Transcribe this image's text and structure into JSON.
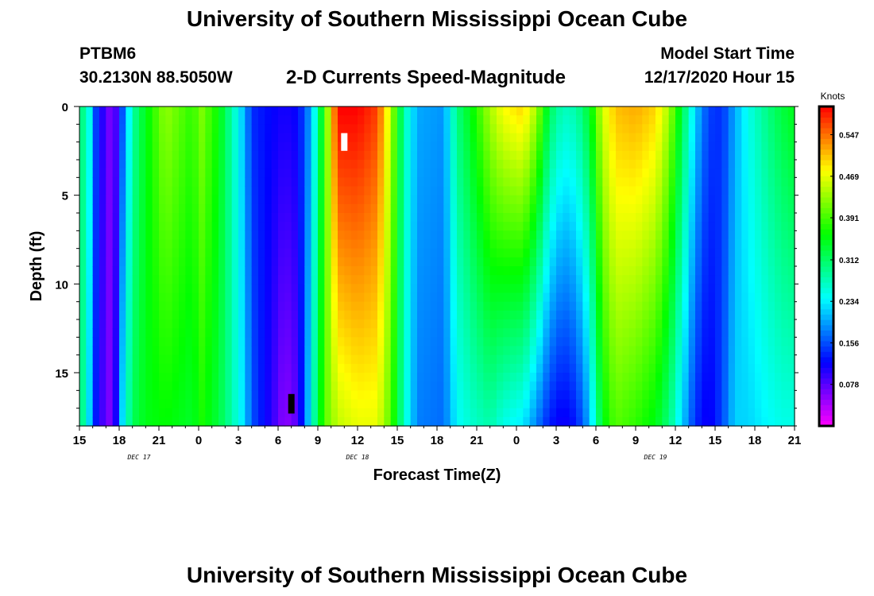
{
  "header": {
    "title": "University of Southern Mississippi Ocean Cube",
    "station_id": "PTBM6",
    "coordinates": "30.2130N 88.5050W",
    "chart_title": "2-D Currents Speed-Magnitude",
    "model_start_label": "Model Start Time",
    "model_start_value": "12/17/2020 Hour 15"
  },
  "footer": {
    "title": "University of Southern Mississippi Ocean Cube"
  },
  "chart_data": {
    "type": "heatmap",
    "title": "2-D Currents Speed-Magnitude",
    "xlabel": "Forecast Time(Z)",
    "ylabel": "Depth (ft)",
    "x_range_hours": [
      0,
      54
    ],
    "y_range_ft": [
      0,
      18
    ],
    "x_tick_hours": [
      0,
      3,
      6,
      9,
      12,
      15,
      18,
      21,
      24,
      27,
      30,
      33,
      36,
      39,
      42,
      45,
      48,
      51,
      54
    ],
    "x_tick_labels": [
      "15",
      "18",
      "21",
      "0",
      "3",
      "6",
      "9",
      "12",
      "15",
      "18",
      "21",
      "0",
      "3",
      "6",
      "9",
      "12",
      "15",
      "18",
      "21"
    ],
    "y_ticks": [
      0,
      5,
      10,
      15
    ],
    "y_tick_labels": [
      "0",
      "5",
      "10",
      "15"
    ],
    "date_labels": [
      {
        "text": "DEC 17",
        "hour": 4.5
      },
      {
        "text": "DEC 18",
        "hour": 21
      },
      {
        "text": "DEC 19",
        "hour": 43.5
      }
    ],
    "colorbar": {
      "title": "Knots",
      "range": [
        0,
        0.6
      ],
      "tick_values": [
        0.078,
        0.156,
        0.234,
        0.312,
        0.391,
        0.469,
        0.547
      ],
      "tick_labels": [
        "0.078",
        "0.156",
        "0.234",
        "0.312",
        "0.391",
        "0.469",
        "0.547"
      ]
    },
    "grid": {
      "time_step_hours": 0.5,
      "depth_step_ft": 0.5
    },
    "speed_model": {
      "description": "approximate speed (knots) estimated from colors at selected times; surface and bottom values",
      "keyframes": [
        {
          "hour": 0.0,
          "surface": 0.27,
          "bottom": 0.3
        },
        {
          "hour": 0.5,
          "surface": 0.32,
          "bottom": 0.28
        },
        {
          "hour": 1.0,
          "surface": 0.18,
          "bottom": 0.16
        },
        {
          "hour": 1.5,
          "surface": 0.12,
          "bottom": 0.1
        },
        {
          "hour": 2.5,
          "surface": 0.05,
          "bottom": 0.05
        },
        {
          "hour": 3.2,
          "surface": 0.15,
          "bottom": 0.22
        },
        {
          "hour": 4.0,
          "surface": 0.28,
          "bottom": 0.32
        },
        {
          "hour": 5.0,
          "surface": 0.35,
          "bottom": 0.35
        },
        {
          "hour": 6.5,
          "surface": 0.43,
          "bottom": 0.36
        },
        {
          "hour": 8.5,
          "surface": 0.38,
          "bottom": 0.34
        },
        {
          "hour": 9.2,
          "surface": 0.42,
          "bottom": 0.37
        },
        {
          "hour": 10.5,
          "surface": 0.36,
          "bottom": 0.33
        },
        {
          "hour": 11.5,
          "surface": 0.28,
          "bottom": 0.28
        },
        {
          "hour": 12.5,
          "surface": 0.2,
          "bottom": 0.22
        },
        {
          "hour": 13.0,
          "surface": 0.14,
          "bottom": 0.16
        },
        {
          "hour": 14.5,
          "surface": 0.12,
          "bottom": 0.1
        },
        {
          "hour": 15.5,
          "surface": 0.11,
          "bottom": 0.05
        },
        {
          "hour": 16.5,
          "surface": 0.12,
          "bottom": 0.08
        },
        {
          "hour": 17.5,
          "surface": 0.2,
          "bottom": 0.25
        },
        {
          "hour": 18.5,
          "surface": 0.38,
          "bottom": 0.4
        },
        {
          "hour": 19.5,
          "surface": 0.6,
          "bottom": 0.45
        },
        {
          "hour": 21.0,
          "surface": 0.6,
          "bottom": 0.47
        },
        {
          "hour": 22.5,
          "surface": 0.57,
          "bottom": 0.47
        },
        {
          "hour": 23.5,
          "surface": 0.45,
          "bottom": 0.4
        },
        {
          "hour": 24.5,
          "surface": 0.28,
          "bottom": 0.27
        },
        {
          "hour": 25.5,
          "surface": 0.2,
          "bottom": 0.18
        },
        {
          "hour": 27.5,
          "surface": 0.19,
          "bottom": 0.17
        },
        {
          "hour": 28.5,
          "surface": 0.3,
          "bottom": 0.24
        },
        {
          "hour": 29.5,
          "surface": 0.35,
          "bottom": 0.26
        },
        {
          "hour": 31.0,
          "surface": 0.44,
          "bottom": 0.28
        },
        {
          "hour": 32.0,
          "surface": 0.48,
          "bottom": 0.25
        },
        {
          "hour": 33.5,
          "surface": 0.5,
          "bottom": 0.23
        },
        {
          "hour": 34.5,
          "surface": 0.44,
          "bottom": 0.18
        },
        {
          "hour": 35.5,
          "surface": 0.32,
          "bottom": 0.13
        },
        {
          "hour": 36.5,
          "surface": 0.27,
          "bottom": 0.11
        },
        {
          "hour": 37.5,
          "surface": 0.28,
          "bottom": 0.13
        },
        {
          "hour": 38.5,
          "surface": 0.34,
          "bottom": 0.2
        },
        {
          "hour": 39.5,
          "surface": 0.46,
          "bottom": 0.35
        },
        {
          "hour": 40.5,
          "surface": 0.51,
          "bottom": 0.4
        },
        {
          "hour": 42.0,
          "surface": 0.52,
          "bottom": 0.38
        },
        {
          "hour": 43.5,
          "surface": 0.5,
          "bottom": 0.35
        },
        {
          "hour": 44.5,
          "surface": 0.44,
          "bottom": 0.3
        },
        {
          "hour": 45.5,
          "surface": 0.33,
          "bottom": 0.22
        },
        {
          "hour": 46.5,
          "surface": 0.22,
          "bottom": 0.14
        },
        {
          "hour": 47.5,
          "surface": 0.15,
          "bottom": 0.11
        },
        {
          "hour": 48.5,
          "surface": 0.14,
          "bottom": 0.15
        },
        {
          "hour": 49.5,
          "surface": 0.2,
          "bottom": 0.22
        },
        {
          "hour": 50.5,
          "surface": 0.25,
          "bottom": 0.22
        },
        {
          "hour": 52.0,
          "surface": 0.3,
          "bottom": 0.24
        },
        {
          "hour": 53.0,
          "surface": 0.33,
          "bottom": 0.25
        },
        {
          "hour": 54.0,
          "surface": 0.35,
          "bottom": 0.25
        }
      ]
    },
    "markers": [
      {
        "name": "white-marker",
        "hour": 20.0,
        "depth_top": 1.5,
        "depth_bottom": 2.5,
        "color": "#ffffff"
      },
      {
        "name": "black-marker",
        "hour": 16.0,
        "depth_top": 16.2,
        "depth_bottom": 17.3,
        "color": "#000000"
      }
    ]
  }
}
